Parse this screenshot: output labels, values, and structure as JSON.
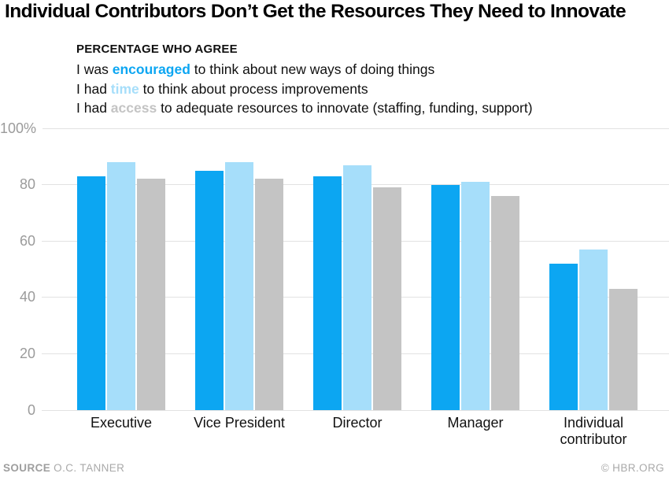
{
  "title": "Individual Contributors Don’t Get the Resources They Need to Innovate",
  "legend": {
    "heading": "PERCENTAGE WHO AGREE",
    "items": [
      {
        "prefix": "I was ",
        "keyword": "encouraged",
        "suffix": " to think about new ways of doing things"
      },
      {
        "prefix": "I had ",
        "keyword": "time",
        "suffix": " to think about process improvements"
      },
      {
        "prefix": "I had ",
        "keyword": "access",
        "suffix": " to adequate resources to innovate (staffing, funding, support)"
      }
    ]
  },
  "chart_data": {
    "type": "bar",
    "title": "Individual Contributors Don’t Get the Resources They Need to Innovate",
    "categories": [
      "Executive",
      "Vice President",
      "Director",
      "Manager",
      "Individual contributor"
    ],
    "series": [
      {
        "name": "encouraged",
        "color": "#0ca6f2",
        "values": [
          83,
          85,
          83,
          80,
          52
        ]
      },
      {
        "name": "time",
        "color": "#a6defa",
        "values": [
          88,
          88,
          87,
          81,
          57
        ]
      },
      {
        "name": "access",
        "color": "#c4c4c4",
        "values": [
          82,
          82,
          79,
          76,
          43
        ]
      }
    ],
    "ylim": [
      0,
      100
    ],
    "yticks": [
      0,
      20,
      40,
      60,
      80,
      100
    ],
    "ytick_labels": [
      "0",
      "20",
      "40",
      "60",
      "80",
      "100%"
    ],
    "grid": true,
    "legend_position": "top-left"
  },
  "footer": {
    "source_label": "SOURCE",
    "source_value": "O.C. TANNER",
    "credit": "© HBR.ORG"
  },
  "colors": {
    "accent_blue": "#0ca6f2",
    "light_blue": "#a6defa",
    "bar_gray": "#c4c4c4",
    "gridline": "#e2e2e2",
    "tick_text": "#9b9b9b",
    "axis_label_text": "#111111",
    "footer_text": "#a9a9a9",
    "title_text": "#000000"
  }
}
